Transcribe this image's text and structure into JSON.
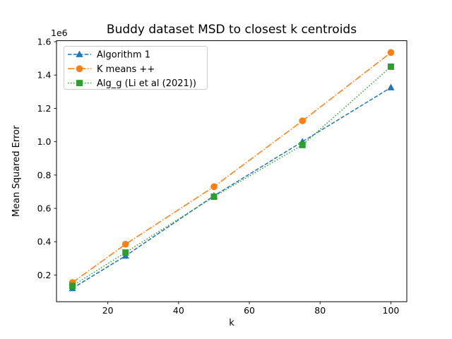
{
  "figure": {
    "background": "#ffffff",
    "spine_color": "#000000"
  },
  "chart_data": {
    "type": "line",
    "title": "Buddy dataset MSD to closest k centroids",
    "xlabel": "k",
    "ylabel": "Mean Squared Error",
    "y_offset_label": "1e6",
    "grid": false,
    "legend_position": "upper left",
    "xlim": [
      5.5,
      104.5
    ],
    "ylim": [
      40000,
      1606000
    ],
    "xticks": [
      20,
      40,
      60,
      80,
      100
    ],
    "xtick_labels": [
      "20",
      "40",
      "60",
      "80",
      "100"
    ],
    "yticks": [
      200000,
      400000,
      600000,
      800000,
      1000000,
      1200000,
      1400000,
      1600000
    ],
    "ytick_labels": [
      "0.2",
      "0.4",
      "0.6",
      "0.8",
      "1.0",
      "1.2",
      "1.4",
      "1.6"
    ],
    "x": [
      10,
      25,
      50,
      75,
      100
    ],
    "series": [
      {
        "name": "Algorithm 1",
        "color": "#1f77b4",
        "linestyle": "dashed",
        "marker": "triangle",
        "values": [
          120000,
          315000,
          675000,
          1000000,
          1325000
        ]
      },
      {
        "name": "K means ++",
        "color": "#ff7f0e",
        "linestyle": "dashdot",
        "marker": "circle",
        "values": [
          155000,
          385000,
          730000,
          1125000,
          1535000
        ]
      },
      {
        "name": "Alg_g (Li et al (2021))",
        "color": "#2ca02c",
        "linestyle": "dotted",
        "marker": "square",
        "values": [
          135000,
          335000,
          670000,
          980000,
          1450000
        ]
      }
    ]
  }
}
